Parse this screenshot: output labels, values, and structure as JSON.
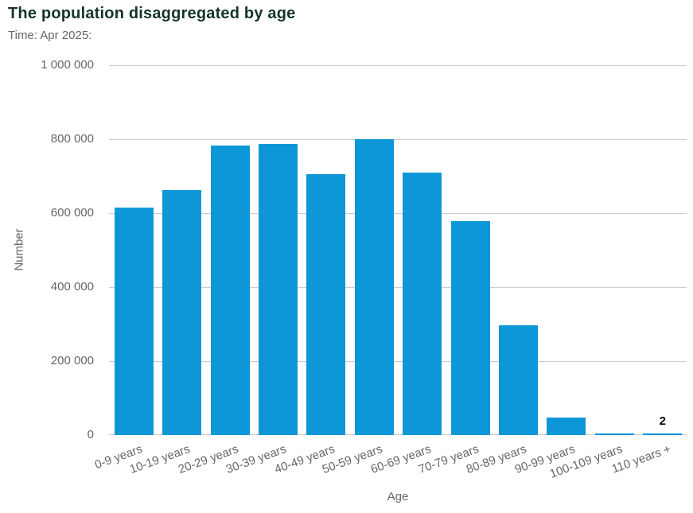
{
  "chart_data": {
    "type": "bar",
    "title": "The population disaggregated by age",
    "subtitle": "Time: Apr 2025:",
    "xlabel": "Age",
    "ylabel": "Number",
    "categories": [
      "0-9 years",
      "10-19 years",
      "20-29 years",
      "30-39 years",
      "40-49 years",
      "50-59 years",
      "60-69 years",
      "70-79 years",
      "80-89 years",
      "90-99 years",
      "100-109 years",
      "110 years +"
    ],
    "values": [
      615000,
      662000,
      783000,
      787000,
      705000,
      800000,
      710000,
      578000,
      297000,
      48000,
      5000,
      2
    ],
    "ylim": [
      0,
      1000000
    ],
    "yticks": [
      {
        "value": 0,
        "label": "0"
      },
      {
        "value": 200000,
        "label": "200 000"
      },
      {
        "value": 400000,
        "label": "400 000"
      },
      {
        "value": 600000,
        "label": "600 000"
      },
      {
        "value": 800000,
        "label": "800 000"
      },
      {
        "value": 1000000,
        "label": "1 000 000"
      }
    ],
    "grid": "horizontal",
    "legend": "none",
    "annotations": [
      {
        "text": "2",
        "bar_index": 11
      }
    ],
    "colors": {
      "bar": "#0d97d8",
      "gridline": "#cccccc",
      "title": "#15332d",
      "axis_text": "#666666",
      "annotation": "#000000"
    }
  }
}
